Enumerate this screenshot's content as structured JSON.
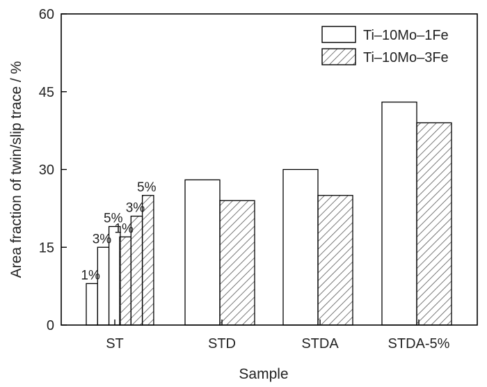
{
  "chart_data": {
    "type": "bar",
    "xlabel": "Sample",
    "ylabel": "Area fraction of twin/slip trace / %",
    "ylim": [
      0,
      60
    ],
    "yticks": [
      "0",
      "15",
      "30",
      "45",
      "60"
    ],
    "grid": false,
    "legend_position": "top-right",
    "categories": [
      "ST",
      "STD",
      "STDA",
      "STDA-5%"
    ],
    "series": [
      {
        "name": "Ti–10Mo–1Fe",
        "fill": "plain",
        "values": [
          [
            8,
            15,
            19
          ],
          28,
          30,
          43
        ],
        "st_labels": [
          "1%",
          "3%",
          "5%"
        ]
      },
      {
        "name": "Ti–10Mo–3Fe",
        "fill": "hatched",
        "values": [
          [
            17,
            21,
            25
          ],
          24,
          25,
          39
        ],
        "st_labels": [
          "1%",
          "3%",
          "5%"
        ]
      }
    ],
    "colors": {
      "stroke": "#000000",
      "hatch": "#555555",
      "background": "#ffffff"
    }
  }
}
